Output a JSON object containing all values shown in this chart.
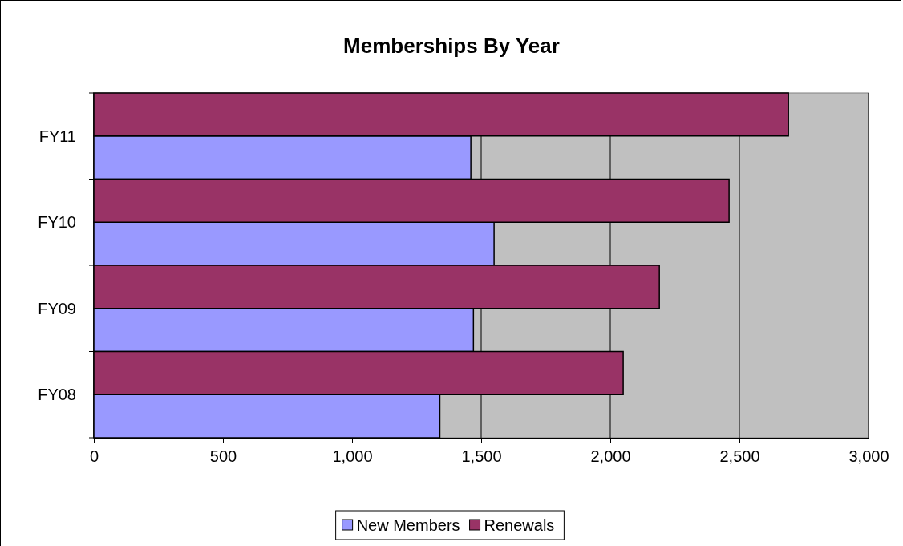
{
  "chart_data": {
    "type": "bar",
    "orientation": "horizontal",
    "title": "Memberships By Year",
    "categories": [
      "FY11",
      "FY10",
      "FY09",
      "FY08"
    ],
    "series": [
      {
        "name": "New Members",
        "color": "#9999ff",
        "values": [
          1460,
          1550,
          1470,
          1340
        ]
      },
      {
        "name": "Renewals",
        "color": "#993366",
        "values": [
          2690,
          2460,
          2190,
          2050
        ]
      }
    ],
    "xlim": [
      0,
      3000
    ],
    "xticks": [
      {
        "value": 0,
        "label": "0"
      },
      {
        "value": 500,
        "label": "500"
      },
      {
        "value": 1000,
        "label": "1,000"
      },
      {
        "value": 1500,
        "label": "1,500"
      },
      {
        "value": 2000,
        "label": "2,000"
      },
      {
        "value": 2500,
        "label": "2,500"
      },
      {
        "value": 3000,
        "label": "3,000"
      }
    ],
    "grid": "x",
    "legend": "bottom"
  }
}
